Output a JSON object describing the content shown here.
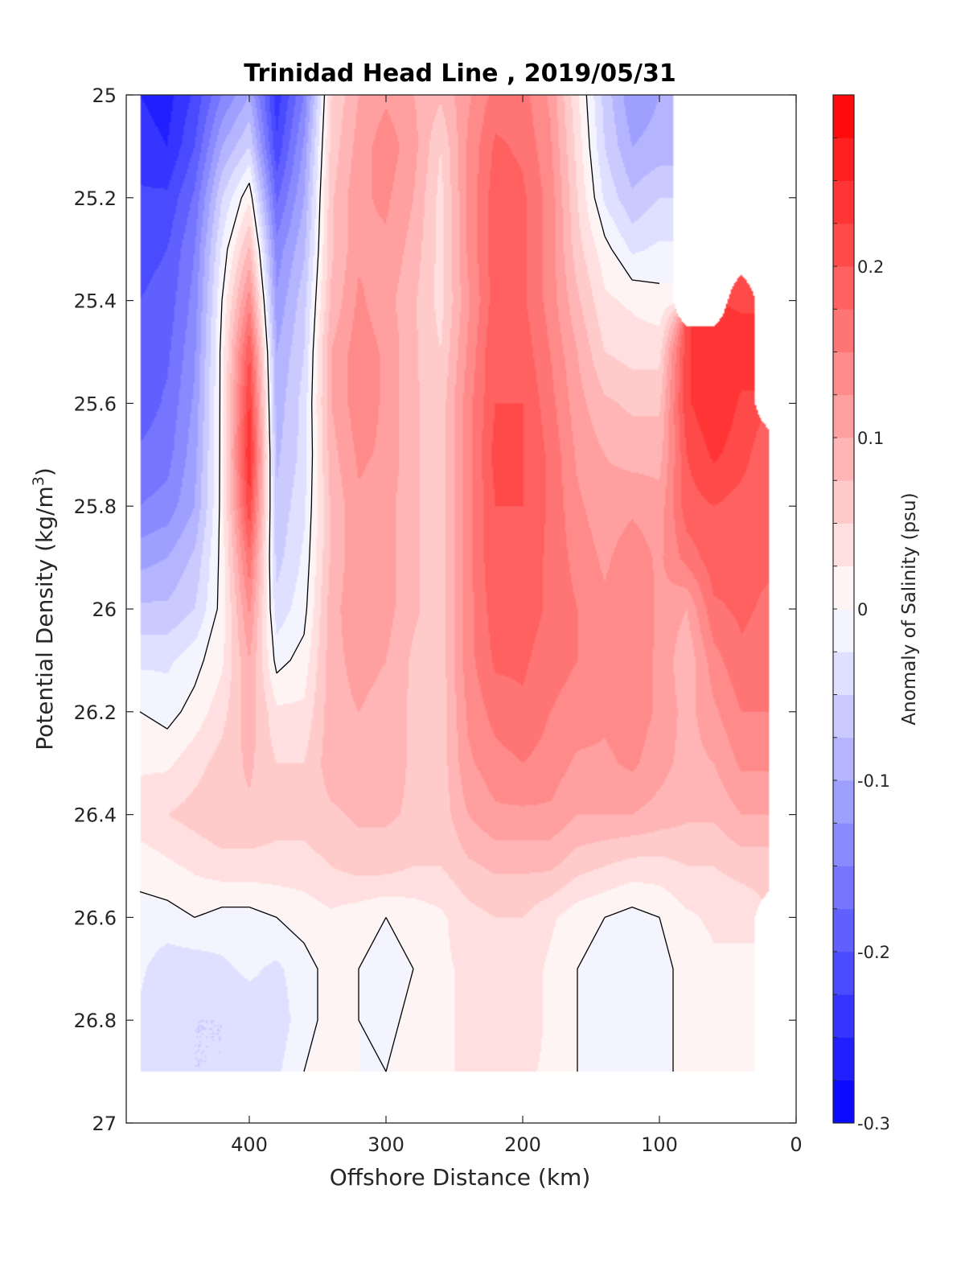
{
  "chart_data": {
    "type": "heatmap",
    "subtype": "filled-contour",
    "title": "Trinidad Head Line , 2019/05/31",
    "xlabel": "Offshore Distance (km)",
    "ylabel_prefix": "Potential Density (kg/m",
    "ylabel_sup": "3",
    "ylabel_suffix": ")",
    "colorbar_label": "Anomaly of Salinity (psu)",
    "xlim": [
      490,
      0
    ],
    "x_reversed": true,
    "ylim": [
      25,
      27
    ],
    "y_reversed": true,
    "xticks": [
      400,
      300,
      200,
      100,
      0
    ],
    "xtick_labels": [
      "400",
      "300",
      "200",
      "100",
      "0"
    ],
    "yticks": [
      25,
      25.2,
      25.4,
      25.6,
      25.8,
      26,
      26.2,
      26.4,
      26.6,
      26.8,
      27
    ],
    "ytick_labels": [
      "25",
      "25.2",
      "25.4",
      "25.6",
      "25.8",
      "26",
      "26.2",
      "26.4",
      "26.6",
      "26.8",
      "27"
    ],
    "clim": [
      -0.3,
      0.3
    ],
    "contour_step": 0.025,
    "zero_contour": "black",
    "colorbar_ticks": [
      -0.3,
      -0.2,
      -0.1,
      0,
      0.1,
      0.2
    ],
    "colorbar_tick_labels": [
      "-0.3",
      "-0.2",
      "-0.1",
      "0",
      "0.1",
      "0.2"
    ],
    "colormap": {
      "negative": "#0000ff",
      "zero": "#ffffff",
      "positive": "#ff0000"
    },
    "grid": false,
    "x": [
      480,
      460,
      440,
      420,
      400,
      380,
      360,
      340,
      320,
      300,
      280,
      260,
      240,
      220,
      200,
      180,
      160,
      140,
      120,
      100,
      80,
      60,
      40,
      20
    ],
    "y": [
      25.0,
      25.1,
      25.2,
      25.3,
      25.4,
      25.5,
      25.6,
      25.7,
      25.8,
      25.9,
      26.0,
      26.1,
      26.2,
      26.3,
      26.4,
      26.5,
      26.6,
      26.7,
      26.8,
      26.9
    ],
    "z": [
      [
        -0.25,
        -0.26,
        -0.22,
        -0.15,
        -0.1,
        -0.24,
        -0.15,
        0.05,
        0.1,
        0.12,
        0.1,
        0.08,
        0.12,
        0.16,
        0.16,
        0.12,
        0.03,
        -0.06,
        -0.12,
        -0.1,
        null,
        null,
        null,
        null
      ],
      [
        -0.24,
        -0.25,
        -0.2,
        -0.1,
        -0.05,
        -0.22,
        -0.12,
        0.06,
        0.11,
        0.14,
        0.11,
        0.05,
        0.13,
        0.18,
        0.17,
        0.13,
        0.04,
        -0.05,
        -0.1,
        -0.09,
        null,
        null,
        null,
        null
      ],
      [
        -0.22,
        -0.22,
        -0.17,
        -0.05,
        0.02,
        -0.18,
        -0.1,
        0.07,
        0.12,
        0.13,
        0.1,
        0.04,
        0.13,
        0.19,
        0.18,
        0.14,
        0.05,
        -0.03,
        -0.07,
        -0.05,
        null,
        null,
        null,
        null
      ],
      [
        -0.21,
        -0.2,
        -0.15,
        -0.02,
        0.08,
        -0.14,
        -0.08,
        0.07,
        0.12,
        0.12,
        0.09,
        0.04,
        0.13,
        0.19,
        0.18,
        0.14,
        0.06,
        0.01,
        -0.03,
        -0.02,
        null,
        null,
        null,
        null
      ],
      [
        -0.2,
        -0.19,
        -0.14,
        0,
        0.14,
        -0.12,
        -0.06,
        0.08,
        0.13,
        0.11,
        0.08,
        0.04,
        0.12,
        0.19,
        0.18,
        0.14,
        0.08,
        0.03,
        0.02,
        0.01,
        null,
        null,
        0.22,
        null
      ],
      [
        -0.19,
        -0.18,
        -0.13,
        0.01,
        0.2,
        -0.1,
        -0.05,
        0.1,
        0.14,
        0.12,
        0.08,
        0.05,
        0.13,
        0.2,
        0.19,
        0.15,
        0.1,
        0.05,
        0.04,
        0.04,
        0.22,
        0.25,
        0.24,
        null
      ],
      [
        -0.19,
        -0.17,
        -0.12,
        0.01,
        0.23,
        -0.09,
        -0.04,
        0.1,
        0.14,
        0.12,
        0.08,
        0.06,
        0.14,
        0.2,
        0.2,
        0.16,
        0.11,
        0.08,
        0.07,
        0.07,
        0.22,
        0.25,
        0.22,
        null
      ],
      [
        -0.17,
        -0.16,
        -0.11,
        0.01,
        0.25,
        -0.08,
        -0.04,
        0.09,
        0.13,
        0.12,
        0.08,
        0.06,
        0.14,
        0.21,
        0.2,
        0.17,
        0.12,
        0.1,
        0.09,
        0.09,
        0.2,
        0.23,
        0.21,
        0.18
      ],
      [
        -0.15,
        -0.14,
        -0.1,
        0.01,
        0.22,
        -0.07,
        -0.03,
        0.08,
        0.12,
        0.11,
        0.08,
        0.06,
        0.14,
        0.2,
        0.2,
        0.17,
        0.13,
        0.11,
        0.12,
        0.11,
        0.19,
        0.2,
        0.19,
        0.18
      ],
      [
        -0.11,
        -0.1,
        -0.07,
        0.01,
        0.17,
        -0.06,
        -0.02,
        0.08,
        0.12,
        0.11,
        0.08,
        0.06,
        0.14,
        0.2,
        0.19,
        0.17,
        0.14,
        0.12,
        0.14,
        0.12,
        0.16,
        0.19,
        0.18,
        0.18
      ],
      [
        -0.07,
        -0.07,
        -0.05,
        0.01,
        0.13,
        -0.04,
        -0.01,
        0.09,
        0.12,
        0.11,
        0.08,
        0.06,
        0.14,
        0.19,
        0.19,
        0.17,
        0.15,
        0.13,
        0.15,
        0.12,
        0.1,
        0.17,
        0.18,
        0.17
      ],
      [
        -0.03,
        -0.03,
        -0.01,
        0.02,
        0.1,
        -0.01,
        0.01,
        0.09,
        0.11,
        0.1,
        0.07,
        0.06,
        0.14,
        0.18,
        0.18,
        0.16,
        0.15,
        0.14,
        0.14,
        0.12,
        0.08,
        0.14,
        0.17,
        0.16
      ],
      [
        0,
        -0.01,
        0.01,
        0.04,
        0.09,
        0.03,
        0.03,
        0.09,
        0.1,
        0.09,
        0.07,
        0.06,
        0.13,
        0.16,
        0.17,
        0.15,
        0.14,
        0.13,
        0.14,
        0.12,
        0.09,
        0.12,
        0.15,
        0.15
      ],
      [
        0.02,
        0.02,
        0.04,
        0.06,
        0.08,
        0.05,
        0.05,
        0.09,
        0.09,
        0.09,
        0.07,
        0.06,
        0.12,
        0.14,
        0.15,
        0.14,
        0.12,
        0.12,
        0.13,
        0.11,
        0.09,
        0.1,
        0.13,
        0.13
      ],
      [
        0.04,
        0.05,
        0.06,
        0.07,
        0.07,
        0.06,
        0.06,
        0.07,
        0.08,
        0.08,
        0.07,
        0.06,
        0.1,
        0.12,
        0.12,
        0.12,
        0.1,
        0.1,
        0.1,
        0.09,
        0.08,
        0.08,
        0.1,
        0.1
      ],
      [
        0.01,
        0.02,
        0.03,
        0.04,
        0.04,
        0.04,
        0.04,
        0.05,
        0.06,
        0.06,
        0.05,
        0.05,
        0.07,
        0.08,
        0.08,
        0.08,
        0.06,
        0.05,
        0.04,
        0.04,
        0.05,
        0.05,
        0.06,
        0.06
      ],
      [
        -0.01,
        -0.01,
        0,
        -0.01,
        -0.01,
        0,
        0.01,
        0.02,
        0.01,
        0,
        0.01,
        0.02,
        0.04,
        0.05,
        0.05,
        0.03,
        0.01,
        0,
        -0.01,
        0,
        0.02,
        0.03,
        0.03,
        null
      ],
      [
        -0.02,
        -0.04,
        -0.04,
        -0.03,
        -0.02,
        -0.03,
        -0.01,
        0.01,
        0,
        -0.01,
        0,
        0.02,
        0.03,
        0.04,
        0.04,
        0.02,
        0,
        -0.01,
        -0.02,
        -0.01,
        0.01,
        0.02,
        0.02,
        null
      ],
      [
        -0.03,
        -0.05,
        -0.05,
        -0.05,
        -0.04,
        -0.04,
        -0.01,
        0.01,
        0,
        -0.01,
        0.01,
        0.02,
        0.03,
        0.04,
        0.04,
        0.02,
        0,
        -0.01,
        -0.02,
        -0.01,
        0.01,
        0.02,
        0.02,
        null
      ],
      [
        -0.03,
        -0.04,
        -0.05,
        -0.05,
        -0.04,
        -0.03,
        0,
        0.01,
        0,
        0,
        0.01,
        0.02,
        0.03,
        0.04,
        0.03,
        0.02,
        0,
        -0.01,
        -0.02,
        -0.01,
        0.01,
        0.02,
        0.02,
        null
      ]
    ]
  }
}
